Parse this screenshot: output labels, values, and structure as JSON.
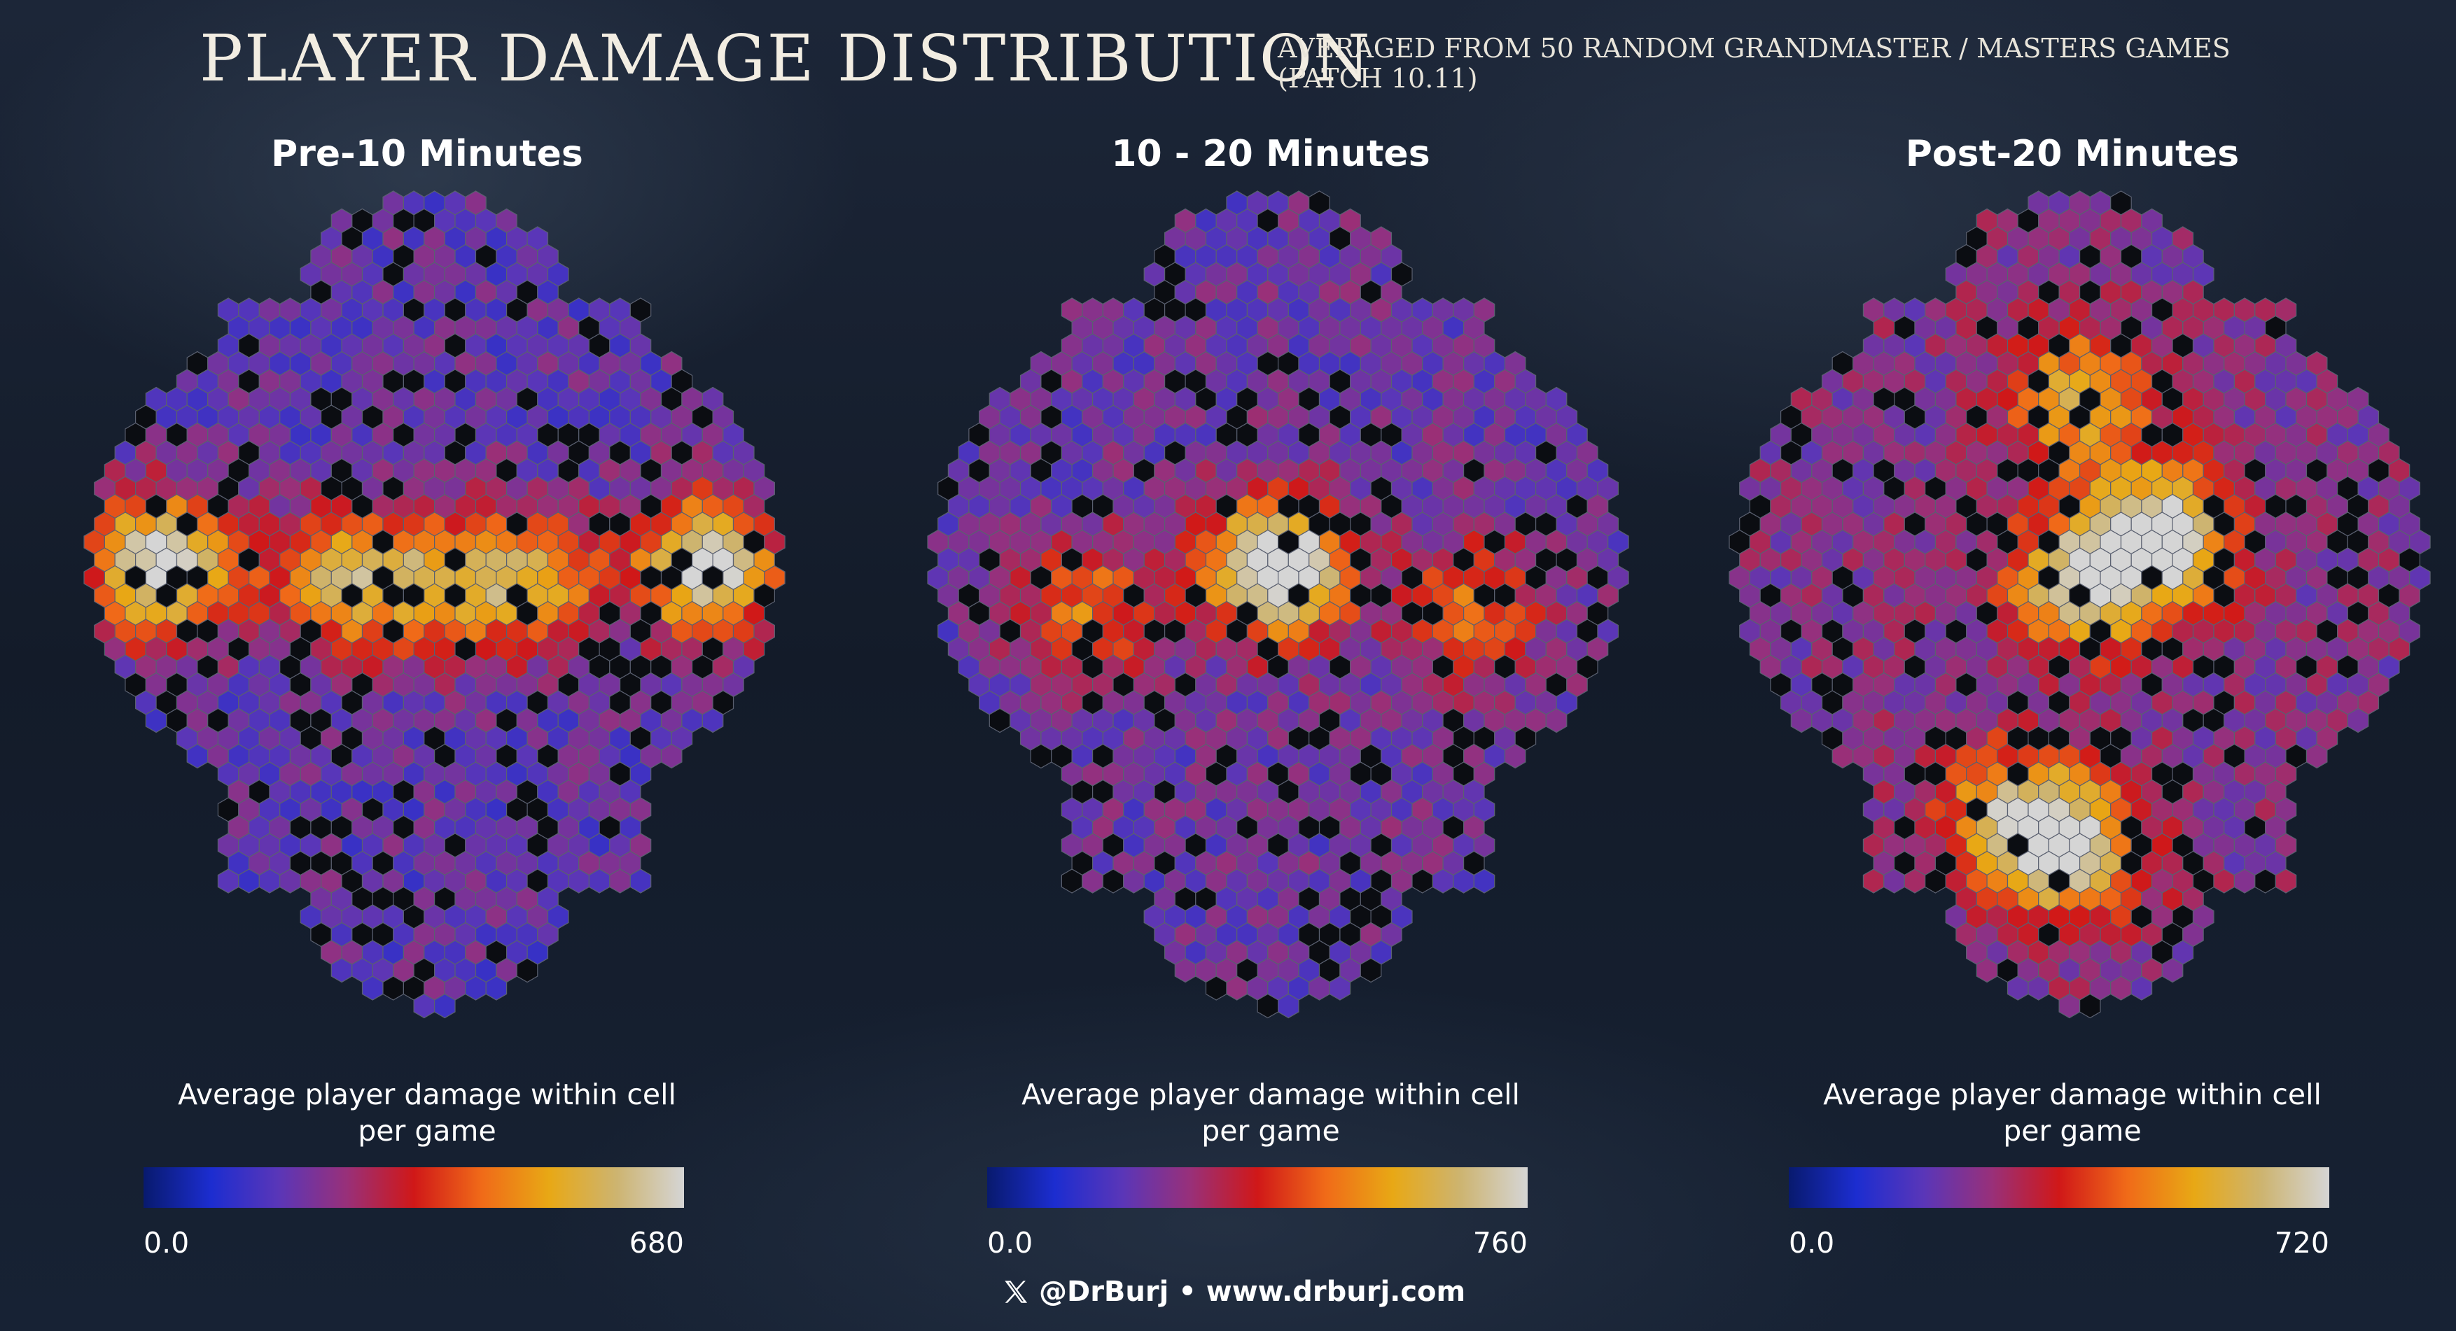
{
  "title": "PLAYER DAMAGE DISTRIBUTION",
  "subtitle": {
    "line1": "AVERAGED FROM 50 RANDOM GRANDMASTER / MASTERS GAMES",
    "line2": "(PATCH 10.11)"
  },
  "colormap": [
    "#081a6e",
    "#1c2dd0",
    "#5a36b8",
    "#98307a",
    "#d01818",
    "#f06a18",
    "#e8a815",
    "#cdb470",
    "#d5d5d5"
  ],
  "panels": [
    {
      "title": "Pre-10 Minutes",
      "legend_line1": "Average player damage within cell",
      "legend_line2": "per game",
      "min_label": "0.0",
      "max_label": "680",
      "vmin": 0,
      "vmax": 680
    },
    {
      "title": "10 - 20 Minutes",
      "legend_line1": "Average player damage within cell",
      "legend_line2": "per game",
      "min_label": "0.0",
      "max_label": "760",
      "vmin": 0,
      "vmax": 760
    },
    {
      "title": "Post-20 Minutes",
      "legend_line1": "Average player damage within cell",
      "legend_line2": "per game",
      "min_label": "0.0",
      "max_label": "720",
      "vmin": 0,
      "vmax": 720
    }
  ],
  "footer": {
    "icon": "x-logo-icon",
    "text": "@DrBurj • www.drburj.com"
  }
}
